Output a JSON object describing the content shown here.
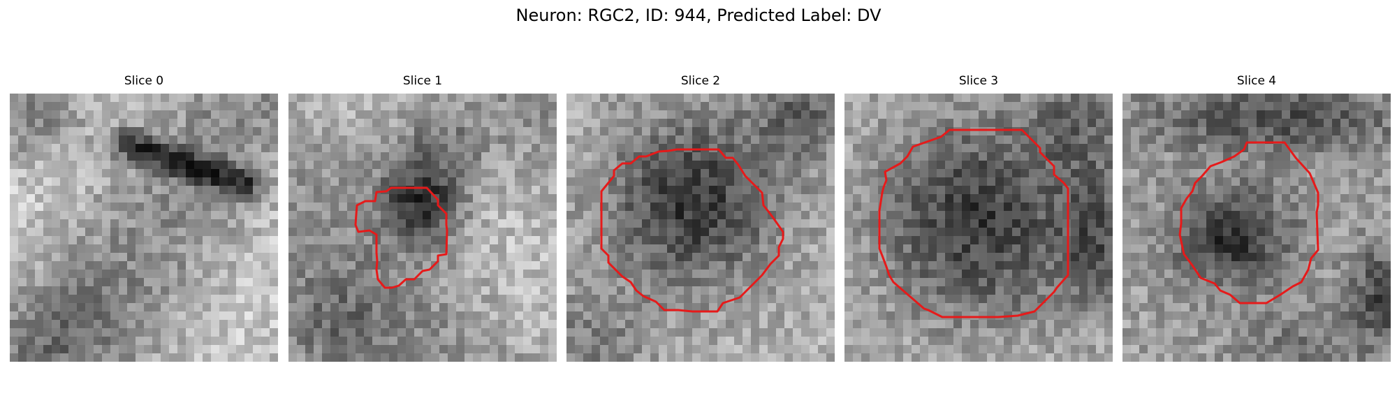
{
  "figure": {
    "suptitle": "Neuron: RGC2, ID: 944, Predicted Label: DV"
  },
  "panels": [
    {
      "title": "Slice 0",
      "has_contour": false
    },
    {
      "title": "Slice 1",
      "has_contour": true
    },
    {
      "title": "Slice 2",
      "has_contour": true
    },
    {
      "title": "Slice 3",
      "has_contour": true
    },
    {
      "title": "Slice 4",
      "has_contour": true
    }
  ],
  "colors": {
    "contour": "#e61a1a",
    "background": "#ffffff"
  }
}
